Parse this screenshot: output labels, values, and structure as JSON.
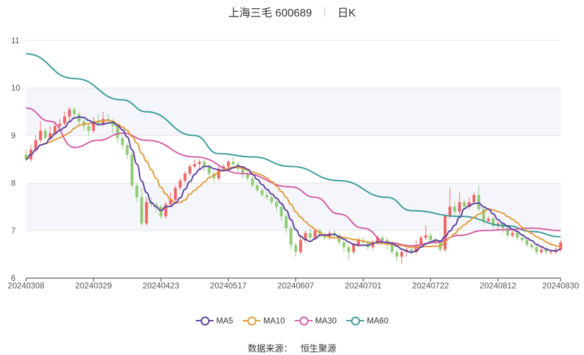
{
  "title": {
    "name": "上海三毛 600689",
    "period": "日K"
  },
  "source": {
    "label": "数据来源：",
    "value": "恒生聚源"
  },
  "colors": {
    "up": "#ee6666",
    "down": "#91cc75",
    "ma5": "#5b3fa0",
    "ma10": "#e39a3a",
    "ma30": "#d65aa8",
    "ma60": "#3b9a9a",
    "grid": "#e6e6e6",
    "band": "#f5f6fb"
  },
  "chart_data": {
    "type": "candlestick",
    "title": "上海三毛 600689",
    "ylim": [
      6,
      11
    ],
    "yticks": [
      "11",
      "10",
      "9",
      "8",
      "7",
      "6"
    ],
    "x_tick_labels": [
      "20240308",
      "20240329",
      "20240423",
      "20240517",
      "20240607",
      "20240701",
      "20240722",
      "20240812",
      "20240830"
    ],
    "x_tick_index": [
      0,
      14,
      28,
      42,
      56,
      70,
      84,
      98,
      111
    ],
    "legend": [
      "MA5",
      "MA10",
      "MA30",
      "MA60"
    ],
    "legend_position": "bottom",
    "candles": [
      [
        8.6,
        8.5,
        8.7,
        8.45
      ],
      [
        8.5,
        8.7,
        8.8,
        8.45
      ],
      [
        8.7,
        8.9,
        9.0,
        8.65
      ],
      [
        8.9,
        9.1,
        9.3,
        8.85
      ],
      [
        9.1,
        8.95,
        9.15,
        8.9
      ],
      [
        8.95,
        9.05,
        9.2,
        8.9
      ],
      [
        9.05,
        9.2,
        9.3,
        9.0
      ],
      [
        9.2,
        9.25,
        9.35,
        9.1
      ],
      [
        9.25,
        9.4,
        9.5,
        9.2
      ],
      [
        9.4,
        9.55,
        9.6,
        9.3
      ],
      [
        9.55,
        9.45,
        9.6,
        9.35
      ],
      [
        9.45,
        9.3,
        9.5,
        9.2
      ],
      [
        9.3,
        9.2,
        9.35,
        9.1
      ],
      [
        9.2,
        9.1,
        9.25,
        9.0
      ],
      [
        9.1,
        9.3,
        9.4,
        9.05
      ],
      [
        9.3,
        9.25,
        9.45,
        9.2
      ],
      [
        9.25,
        9.35,
        9.5,
        9.2
      ],
      [
        9.35,
        9.3,
        9.45,
        9.25
      ],
      [
        9.3,
        9.2,
        9.35,
        9.05
      ],
      [
        9.2,
        8.95,
        9.25,
        8.85
      ],
      [
        8.95,
        8.8,
        9.0,
        8.7
      ],
      [
        8.8,
        8.6,
        8.85,
        8.5
      ],
      [
        8.6,
        7.95,
        8.65,
        7.9
      ],
      [
        7.95,
        7.7,
        8.0,
        7.6
      ],
      [
        7.7,
        7.15,
        7.9,
        7.1
      ],
      [
        7.15,
        7.6,
        7.7,
        7.1
      ],
      [
        7.6,
        7.55,
        7.7,
        7.5
      ],
      [
        7.55,
        7.5,
        7.6,
        7.4
      ],
      [
        7.5,
        7.3,
        7.55,
        7.25
      ],
      [
        7.3,
        7.55,
        7.6,
        7.25
      ],
      [
        7.55,
        7.65,
        7.8,
        7.5
      ],
      [
        7.65,
        7.9,
        7.95,
        7.6
      ],
      [
        7.9,
        8.05,
        8.1,
        7.85
      ],
      [
        8.05,
        8.2,
        8.25,
        8.0
      ],
      [
        8.2,
        8.35,
        8.4,
        8.15
      ],
      [
        8.35,
        8.4,
        8.5,
        8.3
      ],
      [
        8.4,
        8.45,
        8.5,
        8.3
      ],
      [
        8.45,
        8.35,
        8.5,
        8.25
      ],
      [
        8.35,
        8.2,
        8.4,
        8.1
      ],
      [
        8.2,
        8.1,
        8.25,
        8.0
      ],
      [
        8.1,
        8.3,
        8.35,
        8.05
      ],
      [
        8.3,
        8.35,
        8.4,
        8.25
      ],
      [
        8.35,
        8.45,
        8.5,
        8.3
      ],
      [
        8.45,
        8.4,
        8.55,
        8.35
      ],
      [
        8.4,
        8.3,
        8.45,
        8.2
      ],
      [
        8.3,
        8.2,
        8.35,
        8.1
      ],
      [
        8.2,
        8.1,
        8.25,
        8.05
      ],
      [
        8.1,
        7.95,
        8.15,
        7.9
      ],
      [
        7.95,
        7.85,
        8.0,
        7.8
      ],
      [
        7.85,
        7.75,
        7.9,
        7.7
      ],
      [
        7.75,
        7.7,
        7.85,
        7.65
      ],
      [
        7.7,
        7.6,
        7.75,
        7.55
      ],
      [
        7.6,
        7.5,
        7.65,
        7.4
      ],
      [
        7.5,
        7.3,
        7.55,
        7.2
      ],
      [
        7.3,
        7.05,
        7.35,
        6.95
      ],
      [
        7.05,
        6.7,
        7.1,
        6.6
      ],
      [
        6.7,
        6.55,
        6.75,
        6.45
      ],
      [
        6.55,
        6.8,
        6.9,
        6.5
      ],
      [
        6.8,
        6.95,
        7.0,
        6.75
      ],
      [
        6.95,
        6.85,
        7.05,
        6.8
      ],
      [
        6.85,
        7.0,
        7.05,
        6.8
      ],
      [
        7.0,
        6.9,
        7.05,
        6.85
      ],
      [
        6.9,
        6.85,
        6.95,
        6.8
      ],
      [
        6.85,
        6.95,
        7.0,
        6.8
      ],
      [
        6.95,
        6.9,
        7.0,
        6.85
      ],
      [
        6.9,
        6.75,
        6.95,
        6.7
      ],
      [
        6.75,
        6.65,
        6.8,
        6.55
      ],
      [
        6.65,
        6.55,
        6.7,
        6.4
      ],
      [
        6.55,
        6.7,
        6.75,
        6.5
      ],
      [
        6.7,
        6.8,
        6.85,
        6.65
      ],
      [
        6.8,
        6.75,
        6.85,
        6.7
      ],
      [
        6.75,
        6.65,
        6.8,
        6.6
      ],
      [
        6.65,
        6.75,
        6.8,
        6.6
      ],
      [
        6.75,
        6.85,
        6.9,
        6.7
      ],
      [
        6.85,
        6.8,
        6.9,
        6.75
      ],
      [
        6.8,
        6.7,
        6.85,
        6.6
      ],
      [
        6.7,
        6.55,
        6.75,
        6.5
      ],
      [
        6.55,
        6.45,
        6.6,
        6.35
      ],
      [
        6.45,
        6.55,
        6.6,
        6.3
      ],
      [
        6.55,
        6.6,
        6.65,
        6.45
      ],
      [
        6.6,
        6.55,
        6.65,
        6.5
      ],
      [
        6.55,
        6.7,
        6.8,
        6.5
      ],
      [
        6.7,
        6.85,
        6.9,
        6.65
      ],
      [
        6.85,
        6.9,
        7.1,
        6.8
      ],
      [
        6.9,
        6.8,
        6.95,
        6.75
      ],
      [
        6.8,
        6.75,
        6.85,
        6.7
      ],
      [
        6.75,
        6.6,
        6.8,
        6.55
      ],
      [
        6.6,
        7.3,
        7.35,
        6.55
      ],
      [
        7.3,
        7.5,
        7.9,
        7.25
      ],
      [
        7.5,
        7.4,
        7.6,
        7.3
      ],
      [
        7.4,
        7.6,
        7.8,
        7.35
      ],
      [
        7.6,
        7.5,
        7.65,
        7.45
      ],
      [
        7.5,
        7.6,
        7.7,
        7.45
      ],
      [
        7.6,
        7.75,
        7.8,
        7.55
      ],
      [
        7.75,
        7.45,
        7.95,
        7.4
      ],
      [
        7.45,
        7.2,
        7.5,
        7.1
      ],
      [
        7.2,
        7.25,
        7.3,
        7.15
      ],
      [
        7.25,
        7.1,
        7.3,
        7.05
      ],
      [
        7.1,
        7.15,
        7.2,
        7.0
      ],
      [
        7.15,
        7.05,
        7.2,
        6.95
      ],
      [
        7.05,
        6.9,
        7.1,
        6.85
      ],
      [
        6.9,
        6.95,
        7.0,
        6.85
      ],
      [
        6.95,
        6.85,
        7.0,
        6.8
      ],
      [
        6.85,
        6.8,
        6.9,
        6.75
      ],
      [
        6.8,
        6.7,
        6.85,
        6.65
      ],
      [
        6.7,
        6.65,
        6.75,
        6.6
      ],
      [
        6.65,
        6.55,
        6.7,
        6.5
      ],
      [
        6.55,
        6.6,
        6.65,
        6.5
      ],
      [
        6.6,
        6.55,
        6.65,
        6.5
      ],
      [
        6.55,
        6.55,
        6.6,
        6.5
      ],
      [
        6.55,
        6.6,
        6.65,
        6.5
      ],
      [
        6.6,
        6.75,
        6.8,
        6.55
      ]
    ],
    "ma60": [
      [
        0,
        10.72
      ],
      [
        10,
        10.2
      ],
      [
        20,
        9.75
      ],
      [
        25,
        9.5
      ],
      [
        35,
        9.0
      ],
      [
        40,
        8.62
      ],
      [
        47,
        8.55
      ],
      [
        55,
        8.35
      ],
      [
        65,
        8.05
      ],
      [
        75,
        7.7
      ],
      [
        80,
        7.42
      ],
      [
        90,
        7.3
      ],
      [
        100,
        7.1
      ],
      [
        105,
        6.98
      ],
      [
        111,
        6.87
      ]
    ],
    "ma30": [
      [
        0,
        9.58
      ],
      [
        5,
        9.3
      ],
      [
        10,
        8.75
      ],
      [
        15,
        8.9
      ],
      [
        20,
        9.05
      ],
      [
        25,
        8.9
      ],
      [
        35,
        8.55
      ],
      [
        45,
        8.2
      ],
      [
        55,
        7.92
      ],
      [
        60,
        7.7
      ],
      [
        65,
        7.35
      ],
      [
        70,
        7.05
      ],
      [
        75,
        6.75
      ],
      [
        80,
        6.68
      ],
      [
        85,
        6.75
      ],
      [
        90,
        6.9
      ],
      [
        95,
        7.0
      ],
      [
        100,
        7.02
      ],
      [
        105,
        7.05
      ],
      [
        111,
        7.0
      ]
    ]
  }
}
